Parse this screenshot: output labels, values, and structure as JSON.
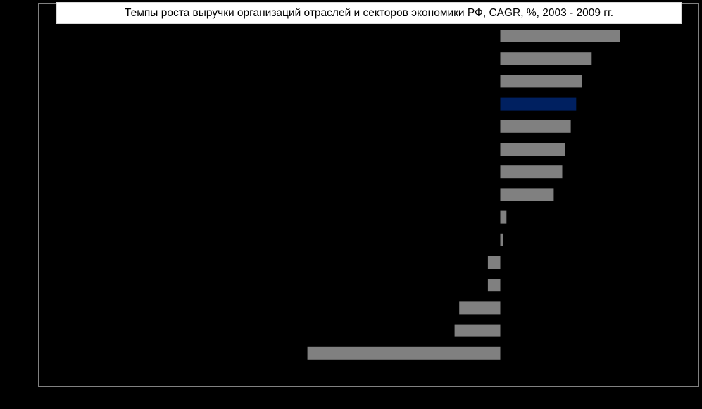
{
  "chart_data": {
    "type": "bar",
    "orientation": "horizontal",
    "title": "Темпы роста выручки организаций  отраслей и секторов экономики  РФ, CAGR, %,  2003 - 2009 гг.",
    "xlabel": "",
    "ylabel": "",
    "xlim": [
      -25,
      16
    ],
    "grid": false,
    "legend": "none",
    "series": [
      {
        "values": [
          15.5,
          11.8,
          10.5,
          9.8,
          9.1,
          8.4,
          8.0,
          6.9,
          0.8,
          0.4,
          -1.6,
          -1.6,
          -5.3,
          -5.9,
          -24.9
        ],
        "highlight_index": 3
      }
    ],
    "colors": {
      "background": "#000000",
      "bar": "#808080",
      "highlight": "#002060",
      "frame": "#808080",
      "title_box": "#ffffff",
      "title_text": "#000000"
    }
  }
}
